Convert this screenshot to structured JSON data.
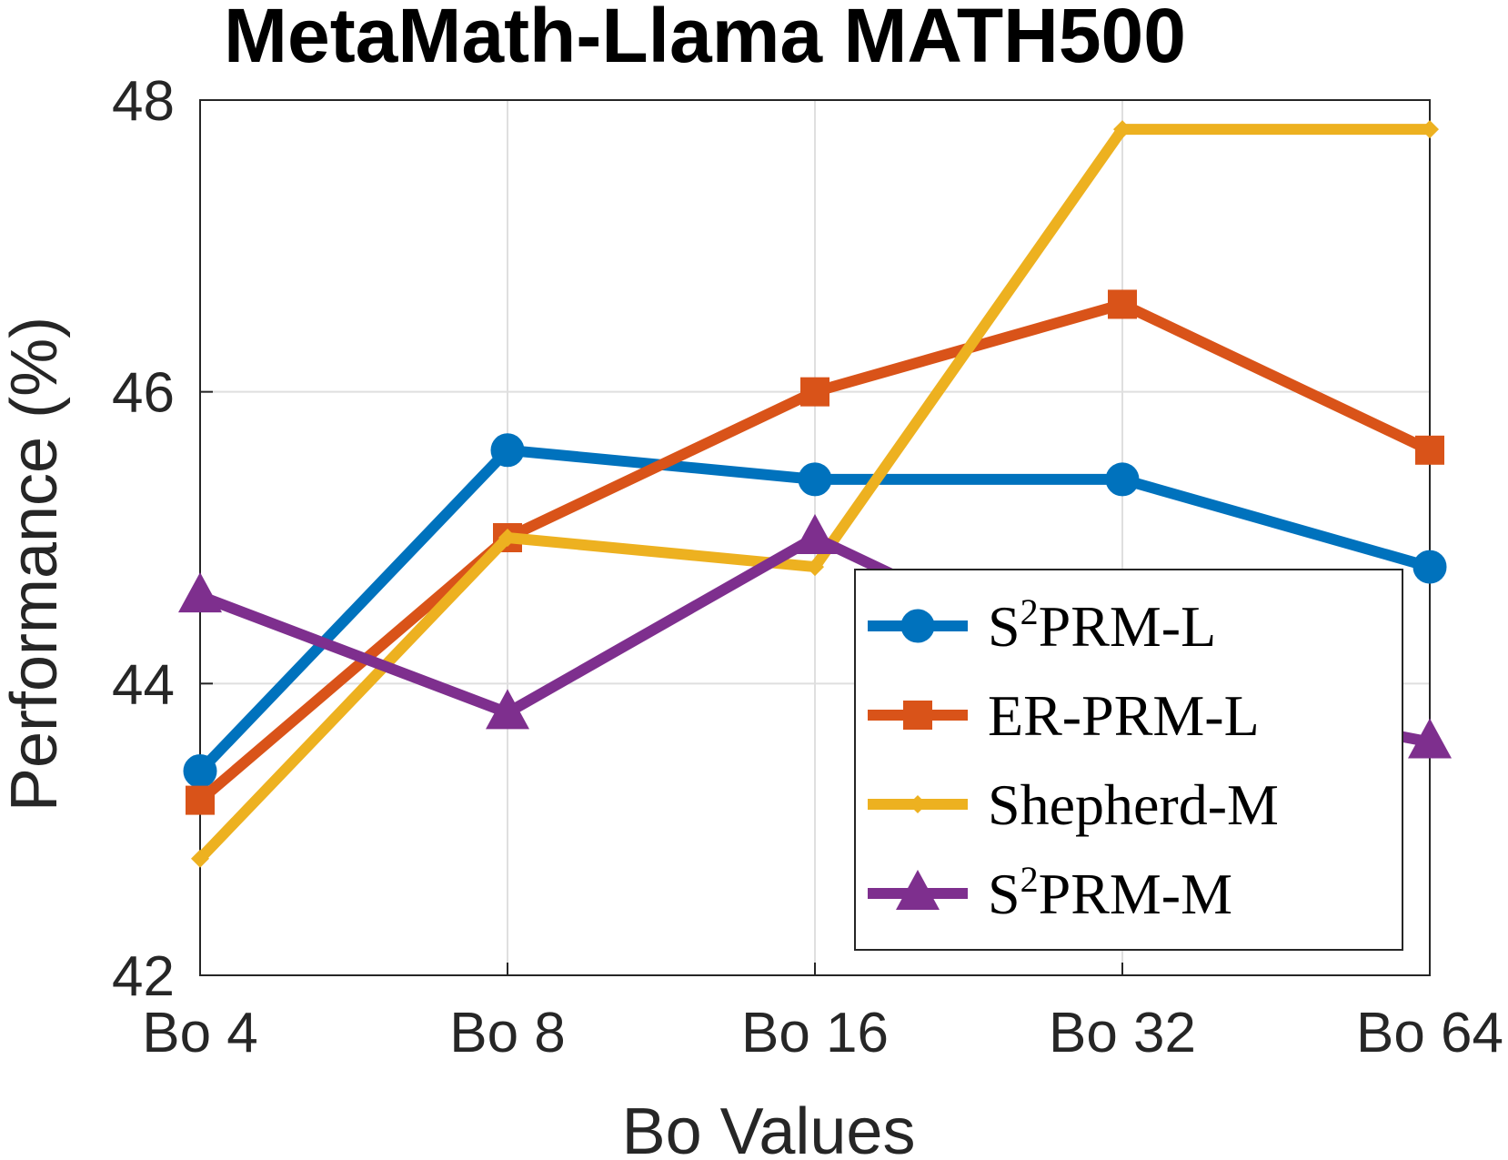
{
  "chart_data": {
    "type": "line",
    "title": "MetaMath-Llama MATH500",
    "xlabel": "Bo Values",
    "ylabel": "Performance (%)",
    "categories": [
      "Bo 4",
      "Bo 8",
      "Bo 16",
      "Bo 32",
      "Bo 64"
    ],
    "ylim": [
      42,
      48
    ],
    "yticks": [
      42,
      44,
      46,
      48
    ],
    "grid": true,
    "legend_position": "bottom-right",
    "series": [
      {
        "name_base": "S",
        "name_sup": "2",
        "name_rest": "PRM-L",
        "color": "#0072BD",
        "marker": "circle",
        "values": [
          43.4,
          45.6,
          45.4,
          45.4,
          44.8
        ]
      },
      {
        "name_base": "ER-PRM-L",
        "name_sup": "",
        "name_rest": "",
        "color": "#D95319",
        "marker": "square",
        "values": [
          43.2,
          45.0,
          46.0,
          46.6,
          45.6
        ]
      },
      {
        "name_base": "Shepherd-M",
        "name_sup": "",
        "name_rest": "",
        "color": "#EDB120",
        "marker": "diamond",
        "values": [
          42.8,
          45.0,
          44.8,
          47.8,
          47.8
        ]
      },
      {
        "name_base": "S",
        "name_sup": "2",
        "name_rest": "PRM-M",
        "color": "#7E2F8E",
        "marker": "triangle",
        "values": [
          44.6,
          43.8,
          45.0,
          44.0,
          43.6
        ]
      }
    ]
  }
}
